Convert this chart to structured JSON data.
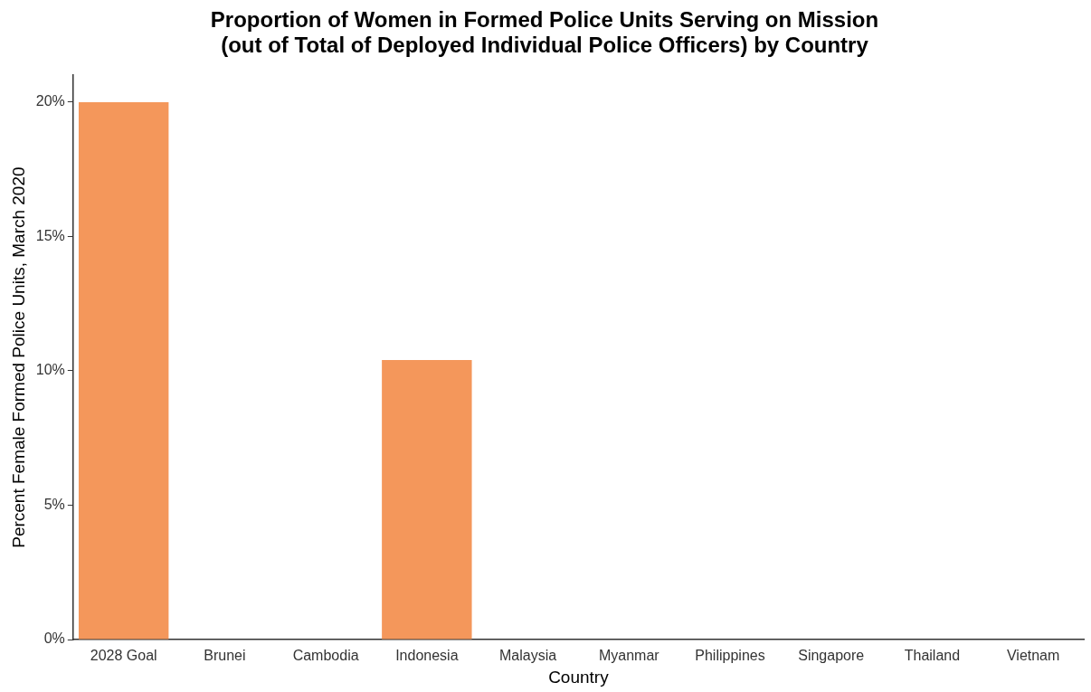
{
  "chart_data": {
    "type": "bar",
    "title": "Proportion of Women in Formed Police Units Serving on Mission\n(out of Total of Deployed Individual Police Officers) by Country",
    "xlabel": "Country",
    "ylabel": "Percent Female Formed Police Units, March 2020",
    "categories": [
      "2028 Goal",
      "Brunei",
      "Cambodia",
      "Indonesia",
      "Malaysia",
      "Myanmar",
      "Philippines",
      "Singapore",
      "Thailand",
      "Vietnam"
    ],
    "values": [
      20,
      0,
      0,
      10.4,
      0,
      0,
      0,
      0,
      0,
      0
    ],
    "color": "#f4975b",
    "ylim": [
      0,
      21
    ],
    "yticks": [
      {
        "value": 0,
        "label": "0%"
      },
      {
        "value": 5,
        "label": "5%"
      },
      {
        "value": 10,
        "label": "10%"
      },
      {
        "value": 15,
        "label": "15%"
      },
      {
        "value": 20,
        "label": "20%"
      }
    ],
    "grid": false,
    "legend": false
  }
}
